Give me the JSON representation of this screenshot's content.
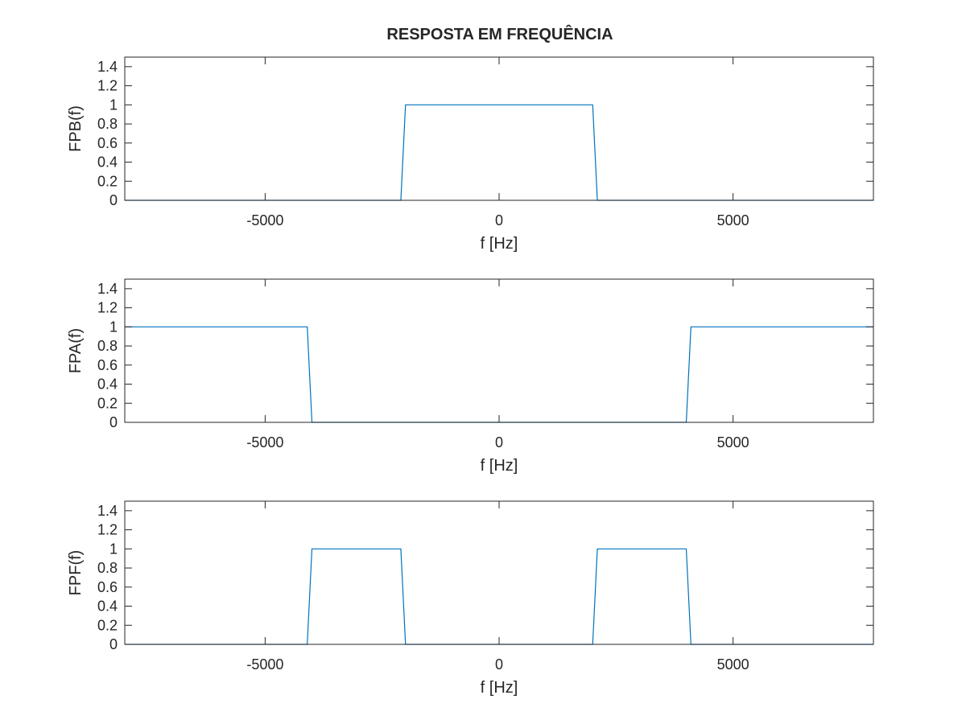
{
  "figure": {
    "title": "RESPOSTA EM FREQUÊNCIA",
    "line_color": "#0072bd",
    "axis_color": "#262626"
  },
  "chart_data": [
    {
      "type": "line",
      "xlabel": "f [Hz]",
      "ylabel": "FPB(f)",
      "xlim": [
        -8000,
        8000
      ],
      "ylim": [
        0,
        1.5
      ],
      "xticks": [
        -5000,
        0,
        5000
      ],
      "yticks": [
        0,
        0.2,
        0.4,
        0.6,
        0.8,
        1,
        1.2,
        1.4
      ],
      "grid": false,
      "series": [
        {
          "x": [
            -8000,
            -2100,
            -2000,
            2000,
            2100,
            8000
          ],
          "y": [
            0,
            0,
            1,
            1,
            0,
            0
          ]
        }
      ]
    },
    {
      "type": "line",
      "xlabel": "f [Hz]",
      "ylabel": "FPA(f)",
      "xlim": [
        -8000,
        8000
      ],
      "ylim": [
        0,
        1.5
      ],
      "xticks": [
        -5000,
        0,
        5000
      ],
      "yticks": [
        0,
        0.2,
        0.4,
        0.6,
        0.8,
        1,
        1.2,
        1.4
      ],
      "grid": false,
      "series": [
        {
          "x": [
            -8000,
            -4100,
            -4000,
            4000,
            4100,
            8000
          ],
          "y": [
            1,
            1,
            0,
            0,
            1,
            1
          ]
        }
      ]
    },
    {
      "type": "line",
      "xlabel": "f [Hz]",
      "ylabel": "FPF(f)",
      "xlim": [
        -8000,
        8000
      ],
      "ylim": [
        0,
        1.5
      ],
      "xticks": [
        -5000,
        0,
        5000
      ],
      "yticks": [
        0,
        0.2,
        0.4,
        0.6,
        0.8,
        1,
        1.2,
        1.4
      ],
      "grid": false,
      "series": [
        {
          "x": [
            -8000,
            -4100,
            -4000,
            -2100,
            -2000,
            2000,
            2100,
            4000,
            4100,
            8000
          ],
          "y": [
            0,
            0,
            1,
            1,
            0,
            0,
            1,
            1,
            0,
            0
          ]
        }
      ]
    }
  ]
}
